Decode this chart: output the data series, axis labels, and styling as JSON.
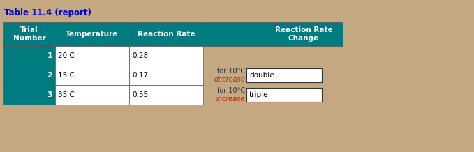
{
  "title": "Table 11.4 (report)",
  "title_color": "#0000CC",
  "bg_color": "#C4A882",
  "header_color": "#007B80",
  "header_text_color": "white",
  "cell_fill": "white",
  "teal_col_color": "#007B80",
  "row_teal_text_color": "white",
  "headers": [
    "Trial\nNumber",
    "Temperature",
    "Reaction Rate",
    "",
    "Reaction Rate\nChange"
  ],
  "rows": [
    {
      "num": "1",
      "temp": "20 C",
      "rate": "0.28"
    },
    {
      "num": "2",
      "temp": "15 C",
      "rate": "0.17"
    },
    {
      "num": "3",
      "temp": "35 C",
      "rate": "0.55"
    }
  ],
  "side_labels": [
    {
      "line1": "for 10°C",
      "line2": "decrease",
      "box_text": "double"
    },
    {
      "line1": "for 10°C",
      "line2": "increase",
      "box_text": "triple"
    }
  ],
  "fig_width": 6.79,
  "fig_height": 2.18,
  "dpi": 100
}
